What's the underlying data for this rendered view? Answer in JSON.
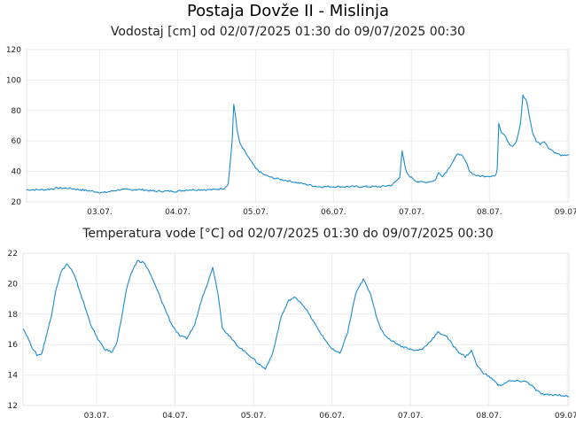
{
  "page": {
    "title": "Postaja Dovže II - Mislinja"
  },
  "chart_data": [
    {
      "type": "line",
      "title": "Vodostaj [cm] od 02/07/2025 01:30 do 09/07/2025 00:30",
      "x_tick_labels": [
        "03.07.",
        "04.07.",
        "05.07.",
        "06.07.",
        "07.07.",
        "08.07.",
        "09.07."
      ],
      "x_tick_days": [
        1,
        2,
        3,
        4,
        5,
        6,
        7
      ],
      "xlim_days": [
        0.0625,
        7.02
      ],
      "ylim": [
        20,
        120
      ],
      "y_ticks": [
        20,
        40,
        60,
        80,
        100,
        120
      ],
      "grid": true,
      "color": "#1a8ad0",
      "series": [
        {
          "x": [
            0.06,
            0.15,
            0.3,
            0.45,
            0.6,
            0.75,
            0.9,
            1.05,
            1.15,
            1.25,
            1.4,
            1.55,
            1.7,
            1.85,
            2.0,
            2.15,
            2.3,
            2.45,
            2.6,
            2.65,
            2.7,
            2.72,
            2.74,
            2.76,
            2.8,
            2.85,
            2.9,
            2.95,
            3.0,
            3.1,
            3.2,
            3.3,
            3.4,
            3.5,
            3.6,
            3.8,
            4.0,
            4.2,
            4.4,
            4.6,
            4.75,
            4.85,
            4.88,
            4.9,
            4.92,
            4.95,
            5.0,
            5.05,
            5.1,
            5.2,
            5.3,
            5.35,
            5.4,
            5.45,
            5.5,
            5.55,
            5.6,
            5.65,
            5.7,
            5.75,
            5.8,
            5.85,
            5.9,
            6.0,
            6.08,
            6.1,
            6.12,
            6.15,
            6.2,
            6.25,
            6.3,
            6.35,
            6.4,
            6.43,
            6.45,
            6.48,
            6.5,
            6.55,
            6.6,
            6.65,
            6.7,
            6.75,
            6.8,
            6.85,
            6.9,
            6.95,
            7.0,
            7.02
          ],
          "y": [
            28,
            28,
            28,
            29,
            29,
            28,
            27,
            26,
            27,
            28,
            28,
            28,
            27,
            27,
            27,
            28,
            28,
            28,
            29,
            32,
            60,
            84,
            78,
            68,
            58,
            54,
            50,
            46,
            42,
            38,
            36,
            35,
            34,
            33,
            32,
            30,
            30,
            30,
            30,
            30,
            31,
            36,
            54,
            48,
            42,
            38,
            36,
            34,
            33,
            33,
            34,
            39,
            37,
            40,
            44,
            48,
            52,
            50,
            46,
            40,
            38,
            37,
            37,
            37,
            37,
            42,
            72,
            66,
            64,
            58,
            56,
            60,
            72,
            90,
            88,
            86,
            80,
            66,
            60,
            58,
            60,
            56,
            54,
            52,
            51,
            50,
            51,
            51
          ]
        }
      ]
    },
    {
      "type": "line",
      "title": "Temperatura vode [°C] od 02/07/2025 01:30 do 09/07/2025 00:30",
      "x_tick_labels": [
        "03.07.",
        "04.07.",
        "05.07.",
        "06.07.",
        "07.07.",
        "08.07.",
        "09.07."
      ],
      "x_tick_days": [
        1,
        2,
        3,
        4,
        5,
        6,
        7
      ],
      "xlim_days": [
        0.0625,
        7.02
      ],
      "ylim": [
        12,
        22
      ],
      "y_ticks": [
        12,
        14,
        16,
        18,
        20,
        22
      ],
      "grid": true,
      "color": "#1a8ad0",
      "series": [
        {
          "x": [
            0.06,
            0.12,
            0.18,
            0.24,
            0.3,
            0.36,
            0.42,
            0.48,
            0.55,
            0.62,
            0.68,
            0.72,
            0.78,
            0.85,
            0.92,
            1.0,
            1.1,
            1.2,
            1.26,
            1.32,
            1.38,
            1.45,
            1.52,
            1.6,
            1.66,
            1.72,
            1.78,
            1.85,
            1.95,
            2.05,
            2.15,
            2.25,
            2.35,
            2.42,
            2.48,
            2.55,
            2.6,
            2.65,
            2.7,
            2.75,
            2.8,
            2.85,
            2.95,
            3.05,
            3.15,
            3.25,
            3.35,
            3.45,
            3.52,
            3.6,
            3.66,
            3.72,
            3.8,
            3.9,
            4.0,
            4.1,
            4.2,
            4.3,
            4.4,
            4.5,
            4.56,
            4.62,
            4.68,
            4.75,
            4.82,
            4.88,
            4.95,
            5.05,
            5.15,
            5.25,
            5.35,
            5.45,
            5.55,
            5.62,
            5.7,
            5.78,
            5.85,
            5.92,
            6.0,
            6.08,
            6.12,
            6.18,
            6.25,
            6.35,
            6.45,
            6.5,
            6.55,
            6.6,
            6.7,
            6.8,
            6.9,
            7.0,
            7.02
          ],
          "y": [
            17.1,
            16.5,
            15.8,
            15.3,
            15.4,
            16.6,
            17.8,
            19.6,
            20.8,
            21.3,
            20.9,
            20.5,
            19.6,
            18.5,
            17.4,
            16.5,
            15.7,
            15.5,
            16.2,
            17.8,
            19.6,
            20.8,
            21.5,
            21.4,
            20.9,
            20.2,
            19.5,
            18.6,
            17.4,
            16.6,
            16.4,
            17.3,
            19.2,
            20.1,
            21.1,
            19.3,
            17.2,
            16.8,
            16.5,
            16.2,
            15.9,
            15.7,
            15.3,
            14.8,
            14.4,
            15.5,
            17.8,
            18.9,
            19.1,
            18.8,
            18.4,
            17.9,
            17.2,
            16.4,
            15.7,
            15.4,
            16.8,
            19.3,
            20.3,
            19.2,
            18.0,
            17.0,
            16.6,
            16.3,
            16.1,
            15.9,
            15.8,
            15.6,
            15.7,
            16.2,
            16.8,
            16.6,
            15.9,
            15.5,
            15.2,
            15.6,
            14.6,
            14.2,
            13.9,
            13.6,
            13.3,
            13.4,
            13.6,
            13.6,
            13.6,
            13.5,
            13.3,
            13.0,
            12.7,
            12.7,
            12.7,
            12.6,
            12.6
          ]
        }
      ]
    }
  ]
}
